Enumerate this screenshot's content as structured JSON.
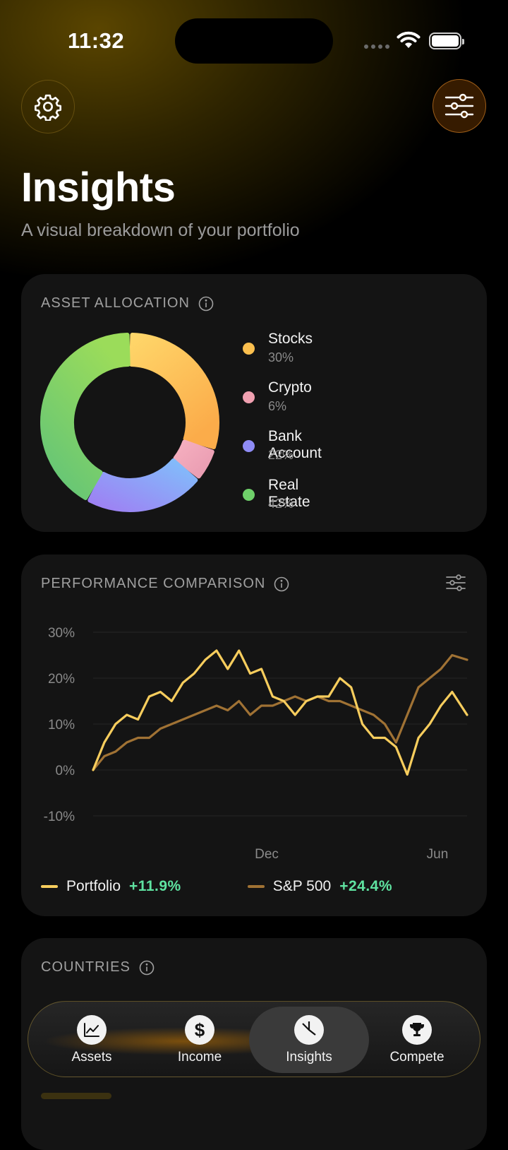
{
  "status_bar": {
    "time": "11:32"
  },
  "header": {
    "title": "Insights",
    "subtitle": "A visual breakdown of your portfolio"
  },
  "asset_allocation": {
    "title": "ASSET ALLOCATION",
    "items": [
      {
        "label": "Stocks",
        "pct": "30%",
        "value": 30,
        "color": "#fbbf4e"
      },
      {
        "label": "Crypto",
        "pct": "6%",
        "value": 6,
        "color": "#f0a0b0"
      },
      {
        "label": "Bank Account",
        "pct": "22%",
        "value": 22,
        "color": "#8f8cf6"
      },
      {
        "label": "Real Estate",
        "pct": "42%",
        "value": 42,
        "color": "#6fd06a"
      }
    ]
  },
  "performance": {
    "title": "PERFORMANCE COMPARISON",
    "legend": [
      {
        "name": "Portfolio",
        "value": "+11.9%",
        "color": "#f7cd5d"
      },
      {
        "name": "S&P 500",
        "value": "+24.4%",
        "color": "#a07234"
      }
    ],
    "chart_data": {
      "type": "line",
      "y_ticks": [
        "30%",
        "20%",
        "10%",
        "0%",
        "-10%"
      ],
      "x_ticks": [
        "Dec",
        "Jun"
      ],
      "ylim": [
        -10,
        30
      ],
      "x": [
        0,
        3,
        6,
        9,
        12,
        15,
        18,
        21,
        24,
        27,
        30,
        33,
        36,
        39,
        42,
        45,
        48,
        51,
        54,
        57,
        60,
        63,
        66,
        69,
        72,
        75,
        78,
        81,
        84,
        87,
        90,
        93,
        96,
        100
      ],
      "series": [
        {
          "name": "Portfolio",
          "color": "#f7cd5d",
          "values": [
            0,
            6,
            10,
            12,
            11,
            16,
            17,
            15,
            19,
            21,
            24,
            26,
            22,
            26,
            21,
            22,
            16,
            15,
            12,
            15,
            16,
            16,
            20,
            18,
            10,
            7,
            7,
            5,
            -1,
            7,
            10,
            14,
            17,
            12
          ]
        },
        {
          "name": "S&P 500",
          "color": "#a07234",
          "values": [
            0,
            3,
            4,
            6,
            7,
            7,
            9,
            10,
            11,
            12,
            13,
            14,
            13,
            15,
            12,
            14,
            14,
            15,
            16,
            15,
            16,
            15,
            15,
            14,
            13,
            12,
            10,
            6,
            12,
            18,
            20,
            22,
            25,
            24
          ]
        }
      ]
    }
  },
  "countries": {
    "title": "COUNTRIES"
  },
  "tabs": [
    {
      "label": "Assets",
      "icon": "chart-line-icon"
    },
    {
      "label": "Income",
      "icon": "dollar-icon"
    },
    {
      "label": "Insights",
      "icon": "pie-chart-icon",
      "active": true
    },
    {
      "label": "Compete",
      "icon": "trophy-icon"
    }
  ]
}
